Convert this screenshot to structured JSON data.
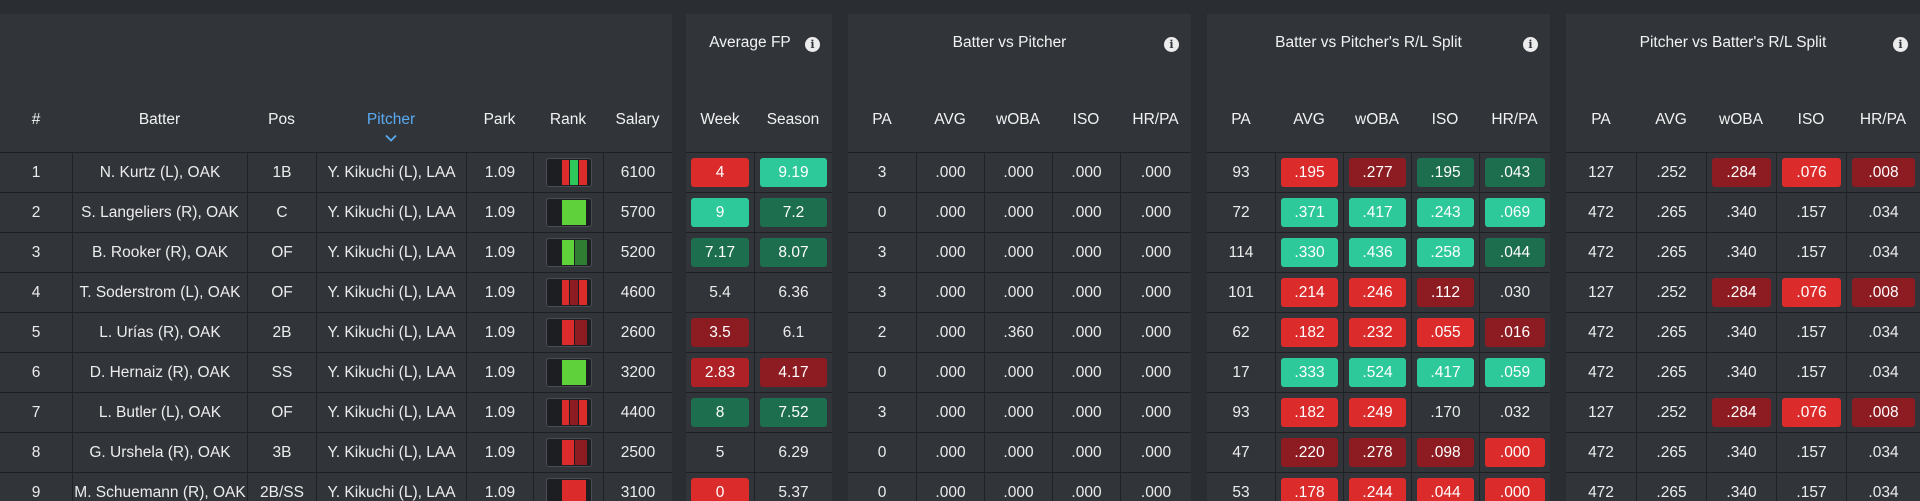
{
  "player_table": {
    "headers": {
      "num": "#",
      "batter": "Batter",
      "pos": "Pos",
      "pitcher": "Pitcher",
      "park": "Park",
      "rank": "Rank",
      "salary": "Salary"
    },
    "rows": [
      {
        "num": "1",
        "batter": "N. Kurtz (L), OAK",
        "pos": "1B",
        "pitcher": "Y. Kikuchi (L), LAA",
        "park": "1.09",
        "salary": "6100",
        "rank_bars": [
          "#dc2b2b",
          "#2ec95a",
          "#dc2b2b"
        ]
      },
      {
        "num": "2",
        "batter": "S. Langeliers (R), OAK",
        "pos": "C",
        "pitcher": "Y. Kikuchi (L), LAA",
        "park": "1.09",
        "salary": "5700",
        "rank_bars": [
          "#5fd13a"
        ]
      },
      {
        "num": "3",
        "batter": "B. Rooker (R), OAK",
        "pos": "OF",
        "pitcher": "Y. Kikuchi (L), LAA",
        "park": "1.09",
        "salary": "5200",
        "rank_bars": [
          "#5fd13a",
          "#2e7d32"
        ]
      },
      {
        "num": "4",
        "batter": "T. Soderstrom (L), OAK",
        "pos": "OF",
        "pitcher": "Y. Kikuchi (L), LAA",
        "park": "1.09",
        "salary": "4600",
        "rank_bars": [
          "#dc2b2b",
          "#8c1c21",
          "#dc2b2b"
        ]
      },
      {
        "num": "5",
        "batter": "L. Urías (R), OAK",
        "pos": "2B",
        "pitcher": "Y. Kikuchi (L), LAA",
        "park": "1.09",
        "salary": "2600",
        "rank_bars": [
          "#dc2b2b",
          "#8c1c21"
        ]
      },
      {
        "num": "6",
        "batter": "D. Hernaiz (R), OAK",
        "pos": "SS",
        "pitcher": "Y. Kikuchi (L), LAA",
        "park": "1.09",
        "salary": "3200",
        "rank_bars": [
          "#5fd13a"
        ]
      },
      {
        "num": "7",
        "batter": "L. Butler (L), OAK",
        "pos": "OF",
        "pitcher": "Y. Kikuchi (L), LAA",
        "park": "1.09",
        "salary": "4400",
        "rank_bars": [
          "#dc2b2b",
          "#8c1c21",
          "#dc2b2b"
        ]
      },
      {
        "num": "8",
        "batter": "G. Urshela (R), OAK",
        "pos": "3B",
        "pitcher": "Y. Kikuchi (L), LAA",
        "park": "1.09",
        "salary": "2500",
        "rank_bars": [
          "#dc2b2b",
          "#8c1c21"
        ]
      },
      {
        "num": "9",
        "batter": "M. Schuemann (R), OAK",
        "pos": "2B/SS",
        "pitcher": "Y. Kikuchi (L), LAA",
        "park": "1.09",
        "salary": "3100",
        "rank_bars": [
          "#dc2b2b"
        ]
      }
    ]
  },
  "average_fp": {
    "title": "Average FP",
    "headers": {
      "week": "Week",
      "season": "Season"
    },
    "rows": [
      {
        "week": "4",
        "season": "9.19"
      },
      {
        "week": "9",
        "season": "7.2"
      },
      {
        "week": "7.17",
        "season": "8.07"
      },
      {
        "week": "5.4",
        "season": "6.36"
      },
      {
        "week": "3.5",
        "season": "6.1"
      },
      {
        "week": "2.83",
        "season": "4.17"
      },
      {
        "week": "8",
        "season": "7.52"
      },
      {
        "week": "5",
        "season": "6.29"
      },
      {
        "week": "0",
        "season": "5.37"
      }
    ]
  },
  "batter_vs_pitcher": {
    "title": "Batter vs Pitcher",
    "headers": {
      "pa": "PA",
      "avg": "AVG",
      "woba": "wOBA",
      "iso": "ISO",
      "hrpa": "HR/PA"
    },
    "rows": [
      {
        "pa": "3",
        "avg": ".000",
        "woba": ".000",
        "iso": ".000",
        "hrpa": ".000"
      },
      {
        "pa": "0",
        "avg": ".000",
        "woba": ".000",
        "iso": ".000",
        "hrpa": ".000"
      },
      {
        "pa": "3",
        "avg": ".000",
        "woba": ".000",
        "iso": ".000",
        "hrpa": ".000"
      },
      {
        "pa": "3",
        "avg": ".000",
        "woba": ".000",
        "iso": ".000",
        "hrpa": ".000"
      },
      {
        "pa": "2",
        "avg": ".000",
        "woba": ".360",
        "iso": ".000",
        "hrpa": ".000"
      },
      {
        "pa": "0",
        "avg": ".000",
        "woba": ".000",
        "iso": ".000",
        "hrpa": ".000"
      },
      {
        "pa": "3",
        "avg": ".000",
        "woba": ".000",
        "iso": ".000",
        "hrpa": ".000"
      },
      {
        "pa": "0",
        "avg": ".000",
        "woba": ".000",
        "iso": ".000",
        "hrpa": ".000"
      },
      {
        "pa": "0",
        "avg": ".000",
        "woba": ".000",
        "iso": ".000",
        "hrpa": ".000"
      }
    ]
  },
  "batter_vs_pitcher_split": {
    "title": "Batter vs Pitcher's R/L Split",
    "headers": {
      "pa": "PA",
      "avg": "AVG",
      "woba": "wOBA",
      "iso": "ISO",
      "hrpa": "HR/PA"
    },
    "rows": [
      {
        "pa": "93",
        "avg": ".195",
        "woba": ".277",
        "iso": ".195",
        "hrpa": ".043"
      },
      {
        "pa": "72",
        "avg": ".371",
        "woba": ".417",
        "iso": ".243",
        "hrpa": ".069"
      },
      {
        "pa": "114",
        "avg": ".330",
        "woba": ".436",
        "iso": ".258",
        "hrpa": ".044"
      },
      {
        "pa": "101",
        "avg": ".214",
        "woba": ".246",
        "iso": ".112",
        "hrpa": ".030"
      },
      {
        "pa": "62",
        "avg": ".182",
        "woba": ".232",
        "iso": ".055",
        "hrpa": ".016"
      },
      {
        "pa": "17",
        "avg": ".333",
        "woba": ".524",
        "iso": ".417",
        "hrpa": ".059"
      },
      {
        "pa": "93",
        "avg": ".182",
        "woba": ".249",
        "iso": ".170",
        "hrpa": ".032"
      },
      {
        "pa": "47",
        "avg": ".220",
        "woba": ".278",
        "iso": ".098",
        "hrpa": ".000"
      },
      {
        "pa": "53",
        "avg": ".178",
        "woba": ".244",
        "iso": ".044",
        "hrpa": ".000"
      }
    ]
  },
  "pitcher_vs_batter_split": {
    "title": "Pitcher vs Batter's R/L Split",
    "headers": {
      "pa": "PA",
      "avg": "AVG",
      "woba": "wOBA",
      "iso": "ISO",
      "hrpa": "HR/PA"
    },
    "rows": [
      {
        "pa": "127",
        "avg": ".252",
        "woba": ".284",
        "iso": ".076",
        "hrpa": ".008"
      },
      {
        "pa": "472",
        "avg": ".265",
        "woba": ".340",
        "iso": ".157",
        "hrpa": ".034"
      },
      {
        "pa": "472",
        "avg": ".265",
        "woba": ".340",
        "iso": ".157",
        "hrpa": ".034"
      },
      {
        "pa": "127",
        "avg": ".252",
        "woba": ".284",
        "iso": ".076",
        "hrpa": ".008"
      },
      {
        "pa": "472",
        "avg": ".265",
        "woba": ".340",
        "iso": ".157",
        "hrpa": ".034"
      },
      {
        "pa": "472",
        "avg": ".265",
        "woba": ".340",
        "iso": ".157",
        "hrpa": ".034"
      },
      {
        "pa": "127",
        "avg": ".252",
        "woba": ".284",
        "iso": ".076",
        "hrpa": ".008"
      },
      {
        "pa": "472",
        "avg": ".265",
        "woba": ".340",
        "iso": ".157",
        "hrpa": ".034"
      },
      {
        "pa": "472",
        "avg": ".265",
        "woba": ".340",
        "iso": ".157",
        "hrpa": ".034"
      }
    ]
  },
  "highlights": {
    "average_fp": [
      [
        "sr",
        "lg"
      ],
      [
        "lg",
        "dg"
      ],
      [
        "dg",
        "dg"
      ],
      [
        "",
        ""
      ],
      [
        "dr",
        ""
      ],
      [
        "mr",
        "dr"
      ],
      [
        "dg",
        "dg"
      ],
      [
        "",
        ""
      ],
      [
        "sr",
        ""
      ]
    ],
    "batter_vs_pitcher_split": [
      [
        "",
        "sr",
        "dr",
        "dg",
        "dg"
      ],
      [
        "",
        "lg",
        "lg",
        "lg",
        "lg"
      ],
      [
        "",
        "lg",
        "lg",
        "lg",
        "dg"
      ],
      [
        "",
        "sr",
        "sr",
        "dr",
        ""
      ],
      [
        "",
        "sr",
        "sr",
        "sr",
        "dr"
      ],
      [
        "",
        "lg",
        "lg",
        "lg",
        "lg"
      ],
      [
        "",
        "sr",
        "sr",
        "",
        ""
      ],
      [
        "",
        "dr",
        "dr",
        "dr",
        "sr"
      ],
      [
        "",
        "sr",
        "sr",
        "sr",
        "sr"
      ]
    ],
    "pitcher_vs_batter_split": [
      [
        "",
        "",
        "dr",
        "sr",
        "dr"
      ],
      [
        "",
        "",
        "",
        "",
        ""
      ],
      [
        "",
        "",
        "",
        "",
        ""
      ],
      [
        "",
        "",
        "dr",
        "sr",
        "dr"
      ],
      [
        "",
        "",
        "",
        "",
        ""
      ],
      [
        "",
        "",
        "",
        "",
        ""
      ],
      [
        "",
        "",
        "dr",
        "sr",
        "dr"
      ],
      [
        "",
        "",
        "",
        "",
        ""
      ],
      [
        "",
        "",
        "",
        "",
        ""
      ]
    ]
  },
  "colors": {
    "red": "#dc2b2b",
    "dark_red": "#8c1c21",
    "mid_red": "#ad2127",
    "light_green": "#2ec99a",
    "dark_green": "#1c6e4f",
    "sort_active": "#5aaaf2"
  }
}
